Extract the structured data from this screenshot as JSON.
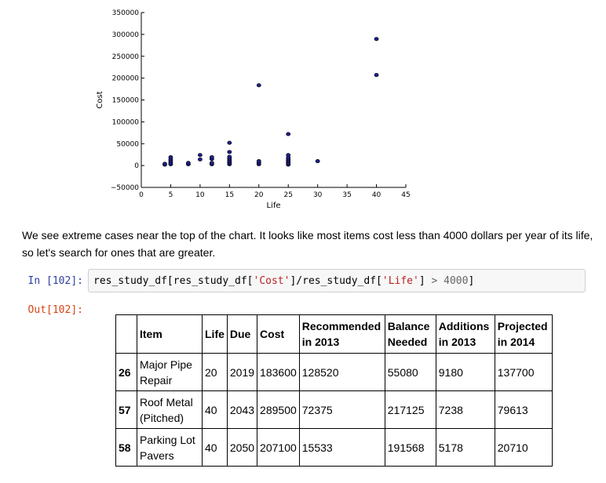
{
  "chart_data": {
    "type": "scatter",
    "xlabel": "Life",
    "ylabel": "Cost",
    "xlim": [
      0,
      45
    ],
    "ylim": [
      -50000,
      350000
    ],
    "x_ticks": [
      "0",
      "5",
      "10",
      "15",
      "20",
      "25",
      "30",
      "35",
      "40",
      "45"
    ],
    "y_ticks": [
      "−50000",
      "0",
      "50000",
      "100000",
      "150000",
      "200000",
      "250000",
      "300000",
      "350000"
    ],
    "marker_color": "#1f1f8f",
    "grid": false,
    "points": [
      {
        "x": 4,
        "y": 2000
      },
      {
        "x": 4,
        "y": 4000
      },
      {
        "x": 5,
        "y": 3000
      },
      {
        "x": 5,
        "y": 6000
      },
      {
        "x": 5,
        "y": 10000
      },
      {
        "x": 5,
        "y": 14000
      },
      {
        "x": 5,
        "y": 19000
      },
      {
        "x": 8,
        "y": 3000
      },
      {
        "x": 8,
        "y": 6000
      },
      {
        "x": 10,
        "y": 14000
      },
      {
        "x": 10,
        "y": 24000
      },
      {
        "x": 12,
        "y": 3000
      },
      {
        "x": 12,
        "y": 6000
      },
      {
        "x": 12,
        "y": 15000
      },
      {
        "x": 12,
        "y": 19000
      },
      {
        "x": 15,
        "y": 3000
      },
      {
        "x": 15,
        "y": 6000
      },
      {
        "x": 15,
        "y": 9000
      },
      {
        "x": 15,
        "y": 12000
      },
      {
        "x": 15,
        "y": 16000
      },
      {
        "x": 15,
        "y": 20000
      },
      {
        "x": 15,
        "y": 31000
      },
      {
        "x": 15,
        "y": 52000
      },
      {
        "x": 20,
        "y": 3000
      },
      {
        "x": 20,
        "y": 7000
      },
      {
        "x": 20,
        "y": 10000
      },
      {
        "x": 20,
        "y": 183600
      },
      {
        "x": 25,
        "y": 2000
      },
      {
        "x": 25,
        "y": 5000
      },
      {
        "x": 25,
        "y": 8000
      },
      {
        "x": 25,
        "y": 11000
      },
      {
        "x": 25,
        "y": 14000
      },
      {
        "x": 25,
        "y": 18000
      },
      {
        "x": 25,
        "y": 24000
      },
      {
        "x": 25,
        "y": 72000
      },
      {
        "x": 30,
        "y": 10000
      },
      {
        "x": 40,
        "y": 207100
      },
      {
        "x": 40,
        "y": 289500
      }
    ]
  },
  "prose": "We see extreme cases near the top of the chart. It looks like most items cost less than 4000 dollars per year of its life, so let's search for ones that are greater.",
  "input_prompt": "In [102]:",
  "output_prompt": "Out[102]:",
  "code": {
    "a": "res_study_df[res_study_df[",
    "s1": "'Cost'",
    "b": "]/res_study_df[",
    "s2": "'Life'",
    "c": "] ",
    "op": ">",
    "d": " ",
    "num": "4000",
    "e": "]"
  },
  "table": {
    "headers": [
      "",
      "Item",
      "Life",
      "Due",
      "Cost",
      "Recommended in 2013",
      "Balance Needed",
      "Additions in 2013",
      "Projected in 2014"
    ],
    "rows": [
      {
        "index": "26",
        "item": "Major Pipe Repair",
        "life": "20",
        "due": "2019",
        "cost": "183600",
        "recommended": "128520",
        "balance": "55080",
        "additions": "9180",
        "projected": "137700"
      },
      {
        "index": "57",
        "item": "Roof Metal (Pitched)",
        "life": "40",
        "due": "2043",
        "cost": "289500",
        "recommended": "72375",
        "balance": "217125",
        "additions": "7238",
        "projected": "79613"
      },
      {
        "index": "58",
        "item": "Parking Lot Pavers",
        "life": "40",
        "due": "2050",
        "cost": "207100",
        "recommended": "15533",
        "balance": "191568",
        "additions": "5178",
        "projected": "20710"
      }
    ]
  }
}
